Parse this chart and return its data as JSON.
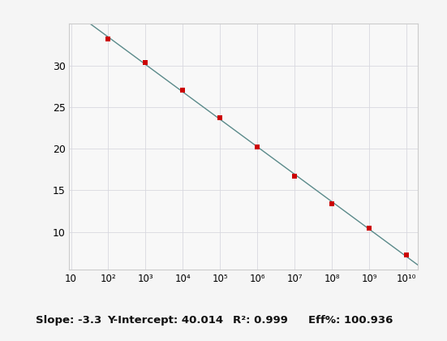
{
  "x_values": [
    100,
    1000,
    10000,
    100000,
    1000000,
    10000000,
    100000000,
    1000000000,
    10000000000
  ],
  "y_values": [
    33.2,
    30.4,
    27.0,
    23.7,
    20.2,
    16.7,
    13.4,
    10.5,
    7.2
  ],
  "slope": -3.3,
  "intercept": 40.014,
  "r_squared": 0.999,
  "eff": 100.936,
  "line_color": "#5a8a8a",
  "marker_color": "#cc0000",
  "bg_color": "#f5f5f5",
  "plot_bg_color": "#f8f8f8",
  "grid_color": "#d8d8e0",
  "xlim": [
    9,
    20000000000
  ],
  "ylim": [
    5.5,
    35
  ],
  "yticks": [
    10,
    15,
    20,
    25,
    30
  ],
  "xtick_values": [
    10,
    100,
    1000,
    10000,
    100000,
    1000000,
    10000000,
    100000000,
    1000000000,
    10000000000
  ],
  "xtick_labels": [
    "10",
    "10²",
    "10³",
    "10⁴",
    "10⁵",
    "10⁶",
    "10⁷",
    "10⁸",
    "10⁹",
    "10¹⁰"
  ],
  "bottom_text_slope": "Slope: -3.3",
  "bottom_text_intercept": "Y-Intercept: 40.014",
  "bottom_text_r2": "R²: 0.999",
  "bottom_text_eff": "Eff%: 100.936"
}
